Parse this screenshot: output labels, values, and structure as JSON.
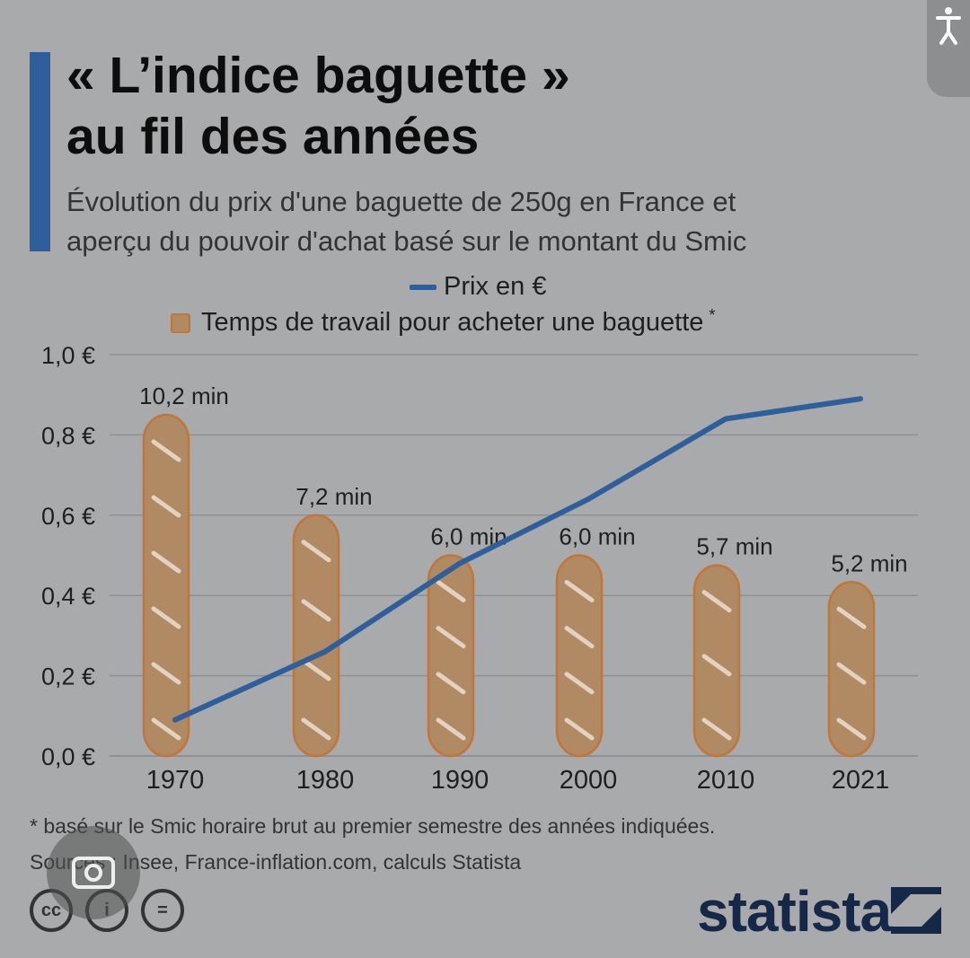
{
  "title_lines": [
    "« L’indice baguette »",
    "au fil des années"
  ],
  "subtitle_lines": [
    "Évolution du prix d'une baguette de 250g en France et",
    "aperçu du pouvoir d'achat basé sur le montant du Smic"
  ],
  "legend": {
    "price": "Prix en €",
    "time": "Temps de travail pour acheter une baguette",
    "time_star": "*"
  },
  "footnote_lines": [
    "* basé sur le Smic horaire brut au premier semestre des années indiquées.",
    "Sources : Insee, France-inflation.com, calculs Statista"
  ],
  "license_icons": [
    "cc",
    "i",
    "="
  ],
  "brand": "statista",
  "colors": {
    "background": "#a9aaab",
    "accent": "#2f5f9b",
    "baguette_fill": "#b08a63",
    "baguette_outline": "#c0763a",
    "baguette_slash": "#e3d2bf",
    "grid": "#8f9091"
  },
  "chart_data": {
    "type": "bar",
    "categories": [
      "1970",
      "1980",
      "1990",
      "2000",
      "2010",
      "2021"
    ],
    "series": [
      {
        "name": "Prix en €",
        "type": "line",
        "values": [
          0.09,
          0.26,
          0.48,
          0.64,
          0.84,
          0.89
        ]
      },
      {
        "name": "Temps de travail pour acheter une baguette",
        "type": "bar",
        "values": [
          10.2,
          7.2,
          6.0,
          6.0,
          5.7,
          5.2
        ],
        "labels": [
          "10,2  min",
          "7,2 min",
          "6,0 min",
          "6,0 min",
          "5,7 min",
          "5,2 min"
        ]
      }
    ],
    "yticks": [
      "1,0 €",
      "0,8 €",
      "0,6 €",
      "0,4 €",
      "0,2 €",
      "0,0 €"
    ],
    "ylim": [
      0,
      1.0
    ],
    "grid": true,
    "legend_position": "top"
  }
}
